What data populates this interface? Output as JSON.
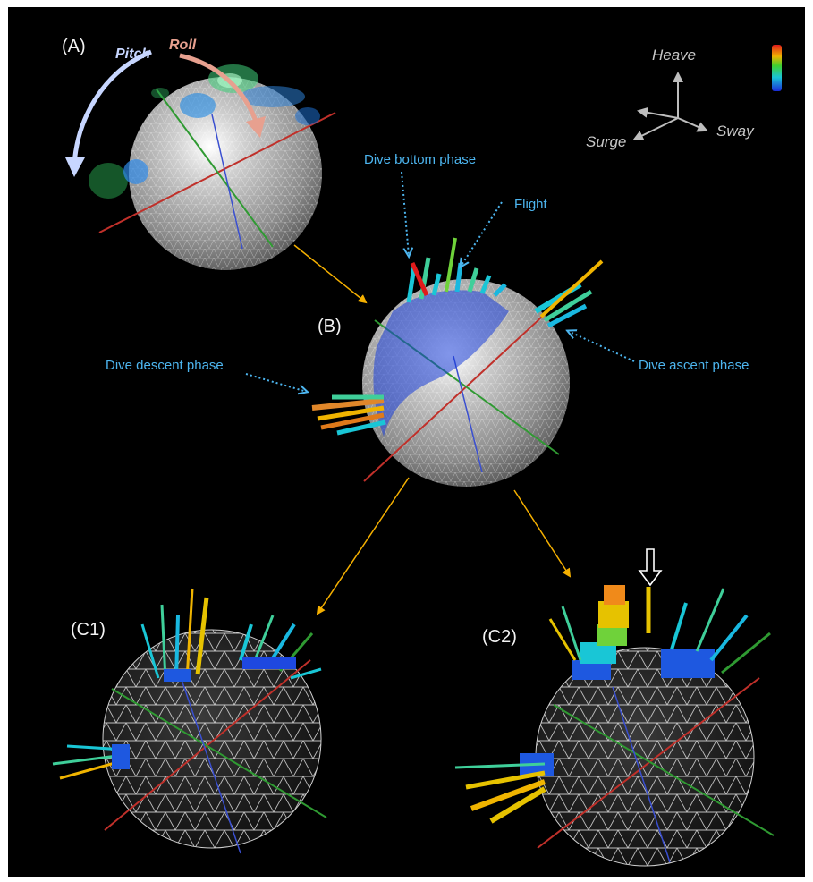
{
  "panels": {
    "a": "(A)",
    "b": "(B)",
    "c1": "(C1)",
    "c2": "(C2)"
  },
  "rotations": {
    "pitch": "Pitch",
    "roll": "Roll"
  },
  "axes": {
    "heave": "Heave",
    "sway": "Sway",
    "surge": "Surge"
  },
  "annotations": {
    "dive_bottom": "Dive bottom  phase",
    "flight": "Flight",
    "dive_descent": "Dive descent phase",
    "dive_ascent": "Dive ascent  phase"
  },
  "colors": {
    "background": "#000000",
    "annotation": "#4db6f0",
    "flow_arrow": "#f5b000",
    "pitch_arrow": "#c7d6ff",
    "roll_arrow": "#e7a08f",
    "x_axis": "#c0302a",
    "y_axis": "#2f9a32",
    "z_axis": "#3a4fd0"
  },
  "icons": {
    "colorbar": "colorbar-jet-legend",
    "hollow_arrow": "hollow-down-arrow-icon"
  }
}
